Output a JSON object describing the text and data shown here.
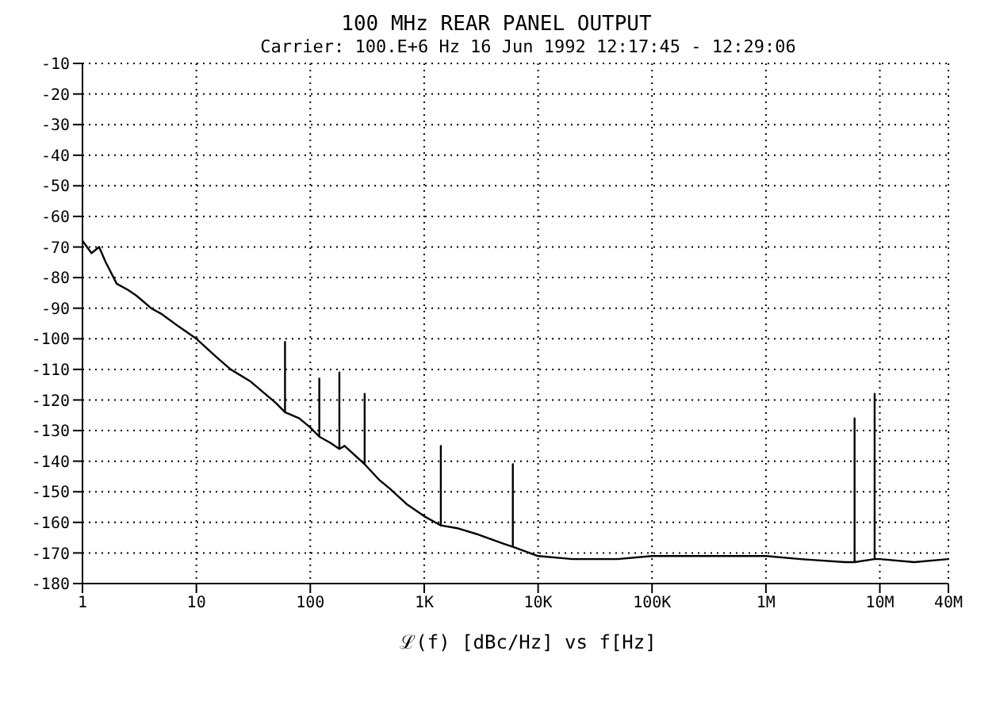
{
  "chart_data": {
    "type": "line",
    "title": "100 MHz REAR PANEL OUTPUT",
    "subtitle": "Carrier: 100.E+6 Hz   16 Jun 1992   12:17:45 - 12:29:06",
    "xlabel": "ℒ(f) [dBc/Hz] vs f[Hz]",
    "log": "x",
    "grid": true,
    "marker": "none",
    "line_style": "solid",
    "xlim": [
      1,
      40000000
    ],
    "xticks": [
      {
        "value": 1,
        "label": "1"
      },
      {
        "value": 10,
        "label": "10"
      },
      {
        "value": 100,
        "label": "100"
      },
      {
        "value": 1000,
        "label": "1K"
      },
      {
        "value": 10000,
        "label": "10K"
      },
      {
        "value": 100000,
        "label": "100K"
      },
      {
        "value": 1000000,
        "label": "1M"
      },
      {
        "value": 10000000,
        "label": "10M"
      },
      {
        "value": 40000000,
        "label": "40M"
      }
    ],
    "ylim": [
      -180,
      -10
    ],
    "yticks": [
      -10,
      -20,
      -30,
      -40,
      -50,
      -60,
      -70,
      -80,
      -90,
      -100,
      -110,
      -120,
      -130,
      -140,
      -150,
      -160,
      -170,
      -180
    ],
    "series": [
      {
        "color": "#000000",
        "x": [
          1,
          1.2,
          1.4,
          1.6,
          2,
          2.5,
          3,
          4,
          5,
          7,
          10,
          15,
          20,
          30,
          50,
          60,
          60,
          60,
          80,
          100,
          120,
          120,
          120,
          150,
          180,
          180,
          180,
          200,
          300,
          300,
          300,
          400,
          500,
          700,
          1000,
          1400,
          1400,
          1400,
          2000,
          3000,
          5000,
          6000,
          6000,
          6000,
          10000,
          20000,
          50000,
          100000,
          200000,
          500000,
          1000000,
          2000000,
          5000000,
          6000000,
          6000000,
          6000000,
          9000000,
          9000000,
          9000000,
          10000000,
          20000000,
          40000000
        ],
        "values": [
          -68,
          -72,
          -70,
          -75,
          -82,
          -84,
          -86,
          -90,
          -92,
          -96,
          -100,
          -106,
          -110,
          -114,
          -121,
          -124,
          -101,
          -124,
          -126,
          -129,
          -132,
          -113,
          -132,
          -134,
          -136,
          -111,
          -136,
          -135,
          -141,
          -118,
          -141,
          -146,
          -149,
          -154,
          -158,
          -161,
          -135,
          -161,
          -162,
          -164,
          -167,
          -168,
          -141,
          -168,
          -171,
          -172,
          -172,
          -171,
          -171,
          -171,
          -171,
          -172,
          -173,
          -173,
          -126,
          -173,
          -172,
          -118,
          -172,
          -172,
          -173,
          -172
        ]
      }
    ]
  }
}
